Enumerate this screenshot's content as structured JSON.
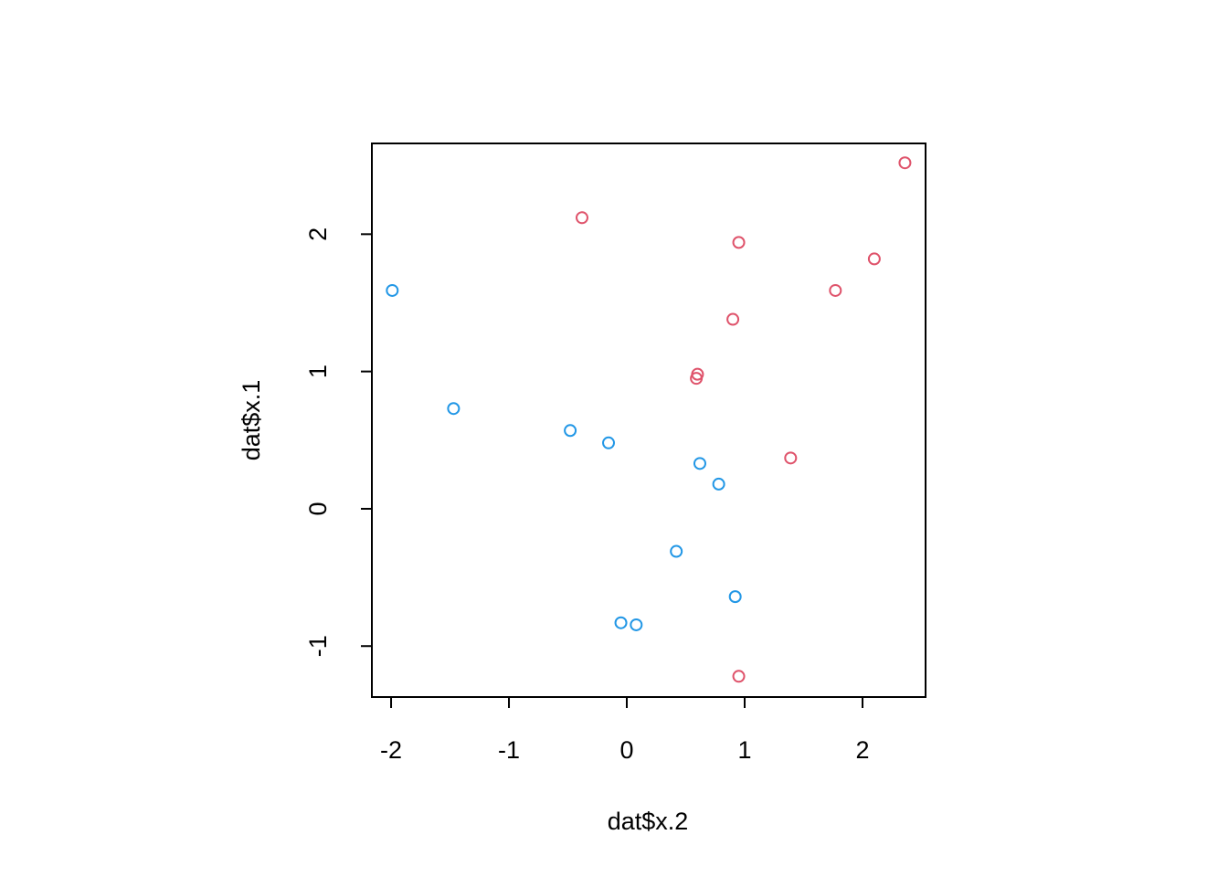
{
  "chart_data": {
    "type": "scatter",
    "x_label": "dat$x.2",
    "y_label": "dat$x.1",
    "xlim": [
      -2.163,
      2.535
    ],
    "ylim": [
      -1.371,
      2.661
    ],
    "xticks": [
      -2,
      -1,
      0,
      1,
      2
    ],
    "yticks": [
      -1,
      0,
      1,
      2
    ],
    "series": [
      {
        "color": "#2297E6",
        "x": [
          -1.99,
          -1.47,
          -0.48,
          -0.155,
          0.62,
          0.78,
          0.42,
          0.92,
          -0.05,
          0.08
        ],
        "values": [
          1.59,
          0.73,
          0.57,
          0.48,
          0.33,
          0.18,
          -0.31,
          -0.64,
          -0.83,
          -0.845
        ]
      },
      {
        "color": "#DF536B",
        "x": [
          -0.38,
          0.95,
          2.36,
          2.1,
          1.77,
          0.9,
          0.6,
          0.59,
          1.39,
          0.95
        ],
        "values": [
          2.12,
          1.94,
          2.52,
          1.82,
          1.59,
          1.38,
          0.98,
          0.95,
          0.37,
          -1.22
        ]
      }
    ]
  }
}
